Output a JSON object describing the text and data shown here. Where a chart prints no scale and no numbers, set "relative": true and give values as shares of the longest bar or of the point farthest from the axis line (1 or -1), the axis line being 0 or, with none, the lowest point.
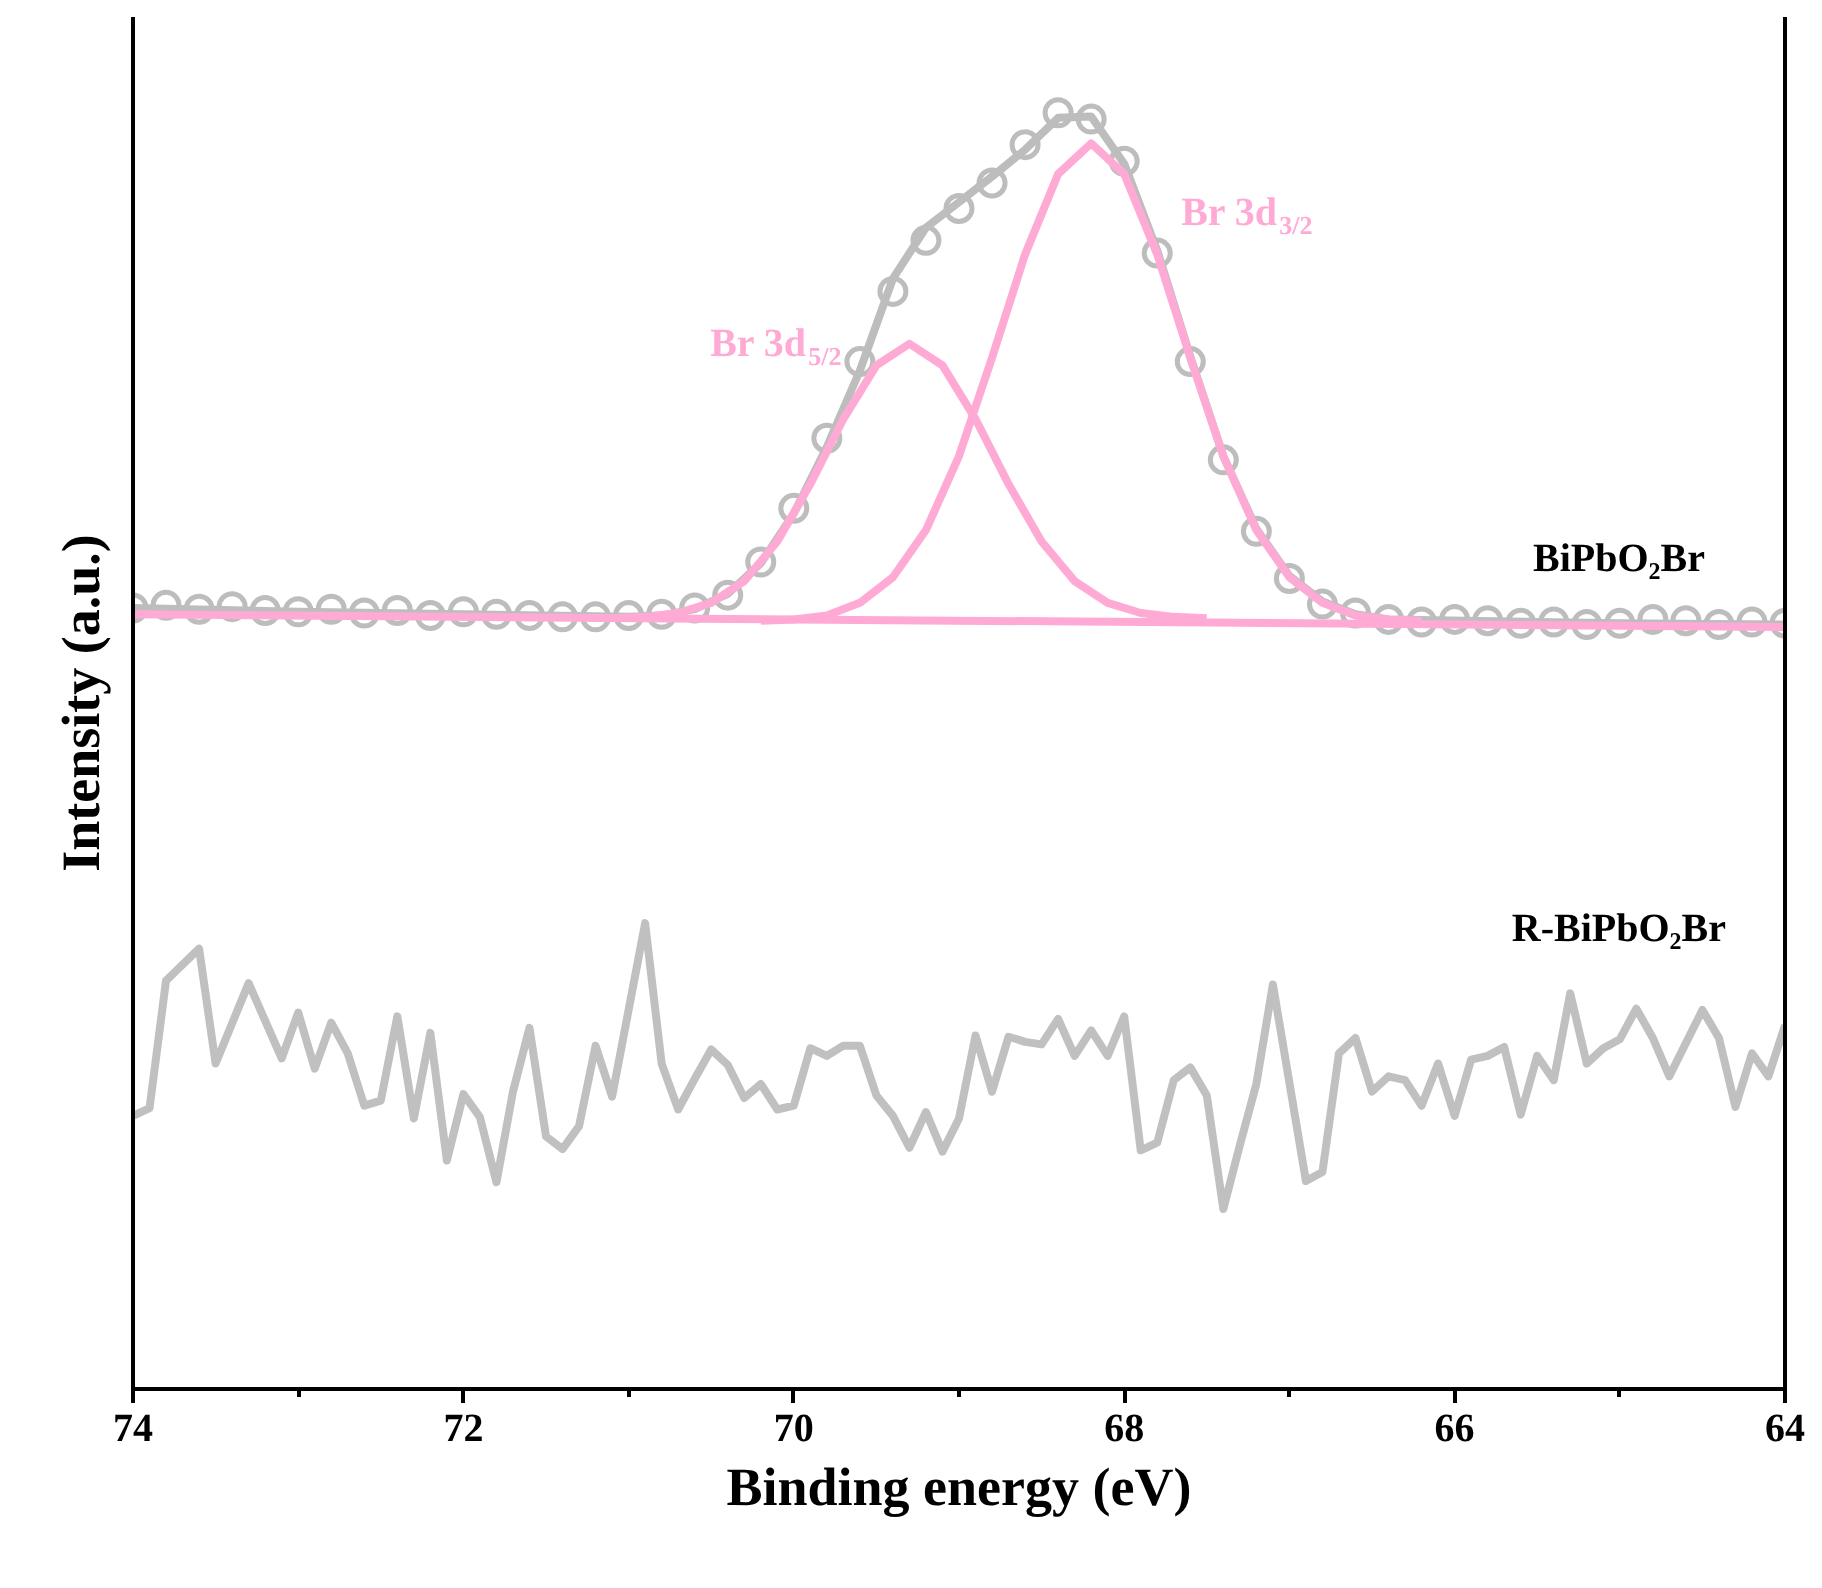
{
  "chart_data": {
    "type": "line",
    "relative": true,
    "xlabel": "Binding energy (eV)",
    "ylabel": "Intensity (a.u.)",
    "xlim": [
      74,
      64
    ],
    "xticks": [
      74,
      72,
      70,
      68,
      66,
      64
    ],
    "series": [
      {
        "type": "scatter",
        "marker": "circle",
        "name": "BiPbO₂Br",
        "color": "#bdbdbd",
        "x": [
          74.0,
          73.8,
          73.6,
          73.4,
          73.2,
          73.0,
          72.8,
          72.6,
          72.4,
          72.2,
          72.0,
          71.8,
          71.6,
          71.4,
          71.2,
          71.0,
          70.8,
          70.6,
          70.4,
          70.2,
          70.0,
          69.8,
          69.6,
          69.4,
          69.2,
          69.0,
          68.8,
          68.6,
          68.4,
          68.2,
          68.0,
          67.8,
          67.6,
          67.4,
          67.2,
          67.0,
          66.8,
          66.6,
          66.4,
          66.2,
          66.0,
          65.8,
          65.6,
          65.4,
          65.2,
          65.0,
          64.8,
          64.6,
          64.4,
          64.2,
          64.0
        ],
        "values": [
          0.612,
          0.614,
          0.611,
          0.613,
          0.61,
          0.609,
          0.611,
          0.608,
          0.61,
          0.606,
          0.609,
          0.607,
          0.606,
          0.605,
          0.605,
          0.606,
          0.607,
          0.612,
          0.622,
          0.648,
          0.69,
          0.745,
          0.805,
          0.86,
          0.9,
          0.925,
          0.945,
          0.975,
          1.0,
          0.995,
          0.962,
          0.89,
          0.805,
          0.728,
          0.672,
          0.635,
          0.615,
          0.608,
          0.603,
          0.601,
          0.603,
          0.602,
          0.6,
          0.601,
          0.599,
          0.6,
          0.603,
          0.602,
          0.599,
          0.601,
          0.6
        ]
      },
      {
        "color": "#bdbdbd",
        "x": [
          74,
          73,
          72,
          71,
          70.8,
          70.6,
          70.4,
          70.2,
          70.0,
          69.8,
          69.6,
          69.4,
          69.2,
          69.0,
          68.8,
          68.6,
          68.4,
          68.2,
          68.0,
          67.8,
          67.6,
          67.4,
          67.2,
          67.0,
          66.8,
          66.6,
          66.4,
          65,
          64
        ],
        "values": [
          0.612,
          0.609,
          0.607,
          0.605,
          0.606,
          0.611,
          0.623,
          0.647,
          0.686,
          0.738,
          0.798,
          0.87,
          0.91,
          0.93,
          0.95,
          0.971,
          0.996,
          0.997,
          0.96,
          0.892,
          0.809,
          0.731,
          0.674,
          0.637,
          0.617,
          0.607,
          0.603,
          0.6,
          0.599
        ]
      },
      {
        "name": "Br 3d$_{5/2}$",
        "color": "#ffaad5",
        "x": [
          71.1,
          70.9,
          70.7,
          70.5,
          70.3,
          70.1,
          69.9,
          69.7,
          69.5,
          69.3,
          69.1,
          68.9,
          68.7,
          68.5,
          68.3,
          68.1,
          67.9,
          67.7,
          67.5
        ],
        "values": [
          0.604,
          0.605,
          0.608,
          0.616,
          0.633,
          0.664,
          0.709,
          0.76,
          0.802,
          0.819,
          0.802,
          0.76,
          0.709,
          0.664,
          0.633,
          0.616,
          0.608,
          0.605,
          0.604
        ]
      },
      {
        "name": "Br 3d$_{3/2}$",
        "color": "#ffaad5",
        "x": [
          70.2,
          70.0,
          69.8,
          69.6,
          69.4,
          69.2,
          69.0,
          68.8,
          68.6,
          68.4,
          68.2,
          68.0,
          67.8,
          67.6,
          67.4,
          67.2,
          67.0,
          66.8,
          66.6,
          66.4,
          66.2
        ],
        "values": [
          0.602,
          0.603,
          0.606,
          0.616,
          0.636,
          0.673,
          0.731,
          0.808,
          0.889,
          0.952,
          0.976,
          0.952,
          0.889,
          0.808,
          0.731,
          0.673,
          0.636,
          0.616,
          0.606,
          0.603,
          0.602
        ]
      },
      {
        "color": "#ffaad5",
        "x": [
          74,
          64
        ],
        "values": [
          0.607,
          0.597
        ]
      },
      {
        "name": "R-BiPbO₂Br",
        "color": "#c0c0c0",
        "x": [
          74.0,
          73.9,
          73.8,
          73.6,
          73.5,
          73.3,
          73.1,
          73.0,
          72.9,
          72.8,
          72.7,
          72.6,
          72.5,
          72.4,
          72.3,
          72.2,
          72.1,
          72.0,
          71.9,
          71.8,
          71.7,
          71.6,
          71.5,
          71.4,
          71.3,
          71.2,
          71.1,
          70.9,
          70.8,
          70.7,
          70.6,
          70.5,
          70.4,
          70.3,
          70.2,
          70.1,
          70.0,
          69.9,
          69.8,
          69.7,
          69.6,
          69.5,
          69.4,
          69.3,
          69.2,
          69.1,
          69.0,
          68.9,
          68.8,
          68.7,
          68.6,
          68.5,
          68.4,
          68.3,
          68.2,
          68.1,
          68.0,
          67.9,
          67.8,
          67.7,
          67.6,
          67.5,
          67.4,
          67.3,
          67.2,
          67.1,
          66.9,
          66.8,
          66.7,
          66.6,
          66.5,
          66.4,
          66.3,
          66.2,
          66.1,
          66.0,
          65.9,
          65.8,
          65.7,
          65.6,
          65.5,
          65.4,
          65.3,
          65.2,
          65.1,
          65.0,
          64.9,
          64.8,
          64.7,
          64.5,
          64.4,
          64.3,
          64.2,
          64.1,
          64.0
        ],
        "values": [
          0.214,
          0.22,
          0.32,
          0.345,
          0.255,
          0.318,
          0.259,
          0.295,
          0.251,
          0.287,
          0.263,
          0.222,
          0.226,
          0.292,
          0.212,
          0.279,
          0.179,
          0.231,
          0.213,
          0.162,
          0.233,
          0.283,
          0.198,
          0.188,
          0.206,
          0.269,
          0.229,
          0.365,
          0.255,
          0.219,
          0.243,
          0.266,
          0.254,
          0.228,
          0.239,
          0.219,
          0.222,
          0.267,
          0.261,
          0.269,
          0.269,
          0.23,
          0.214,
          0.189,
          0.217,
          0.186,
          0.212,
          0.277,
          0.233,
          0.276,
          0.272,
          0.27,
          0.29,
          0.261,
          0.281,
          0.261,
          0.292,
          0.187,
          0.193,
          0.242,
          0.252,
          0.23,
          0.141,
          0.191,
          0.239,
          0.317,
          0.163,
          0.17,
          0.263,
          0.275,
          0.233,
          0.245,
          0.242,
          0.222,
          0.255,
          0.214,
          0.258,
          0.261,
          0.268,
          0.215,
          0.261,
          0.242,
          0.31,
          0.255,
          0.267,
          0.274,
          0.298,
          0.275,
          0.245,
          0.297,
          0.275,
          0.221,
          0.263,
          0.245,
          0.285
        ]
      }
    ]
  }
}
